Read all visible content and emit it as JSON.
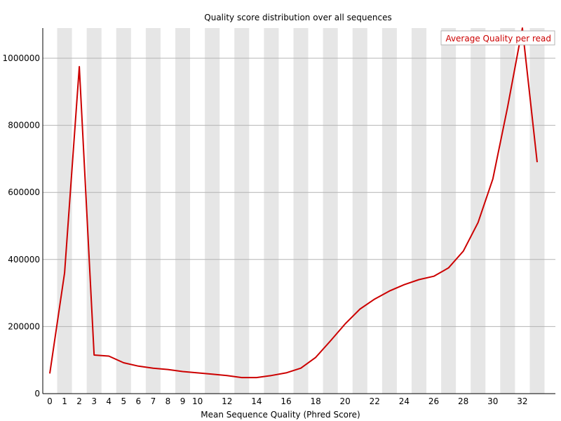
{
  "chart_data": {
    "type": "line",
    "title": "Quality score distribution over all sequences",
    "xlabel": "Mean Sequence Quality (Phred Score)",
    "ylabel": "",
    "x": [
      0,
      1,
      2,
      3,
      4,
      5,
      6,
      7,
      8,
      9,
      10,
      11,
      12,
      13,
      14,
      15,
      16,
      17,
      18,
      19,
      20,
      21,
      22,
      23,
      24,
      25,
      26,
      27,
      28,
      29,
      30,
      31,
      32,
      33
    ],
    "x_tick_labels": [
      "0",
      "1",
      "2",
      "3",
      "4",
      "5",
      "6",
      "7",
      "8",
      "9",
      "10",
      "12",
      "14",
      "16",
      "18",
      "20",
      "22",
      "24",
      "26",
      "28",
      "30",
      "32"
    ],
    "x_tick_values": [
      0,
      1,
      2,
      3,
      4,
      5,
      6,
      7,
      8,
      9,
      10,
      12,
      14,
      16,
      18,
      20,
      22,
      24,
      26,
      28,
      30,
      32
    ],
    "y_tick_labels": [
      "0",
      "200000",
      "400000",
      "600000",
      "800000",
      "1000000"
    ],
    "y_tick_values": [
      0,
      200000,
      400000,
      600000,
      800000,
      1000000
    ],
    "xlim": [
      0,
      33
    ],
    "ylim": [
      0,
      1090000
    ],
    "grid": true,
    "legend_position": "top-right",
    "series": [
      {
        "name": "Average Quality per read",
        "color": "#cc0000",
        "values": [
          60000,
          360000,
          975000,
          115000,
          112000,
          92000,
          82000,
          76000,
          72000,
          66000,
          62000,
          58000,
          54000,
          48000,
          48000,
          54000,
          62000,
          76000,
          108000,
          157000,
          208000,
          252000,
          282000,
          306000,
          325000,
          340000,
          350000,
          375000,
          425000,
          510000,
          640000,
          855000,
          1090000,
          690000
        ]
      }
    ],
    "colors": {
      "stripe": "#e6e6e6",
      "gridline": "#b4b4b4",
      "axis": "#000000",
      "legend_border": "#b4b4b4"
    }
  }
}
